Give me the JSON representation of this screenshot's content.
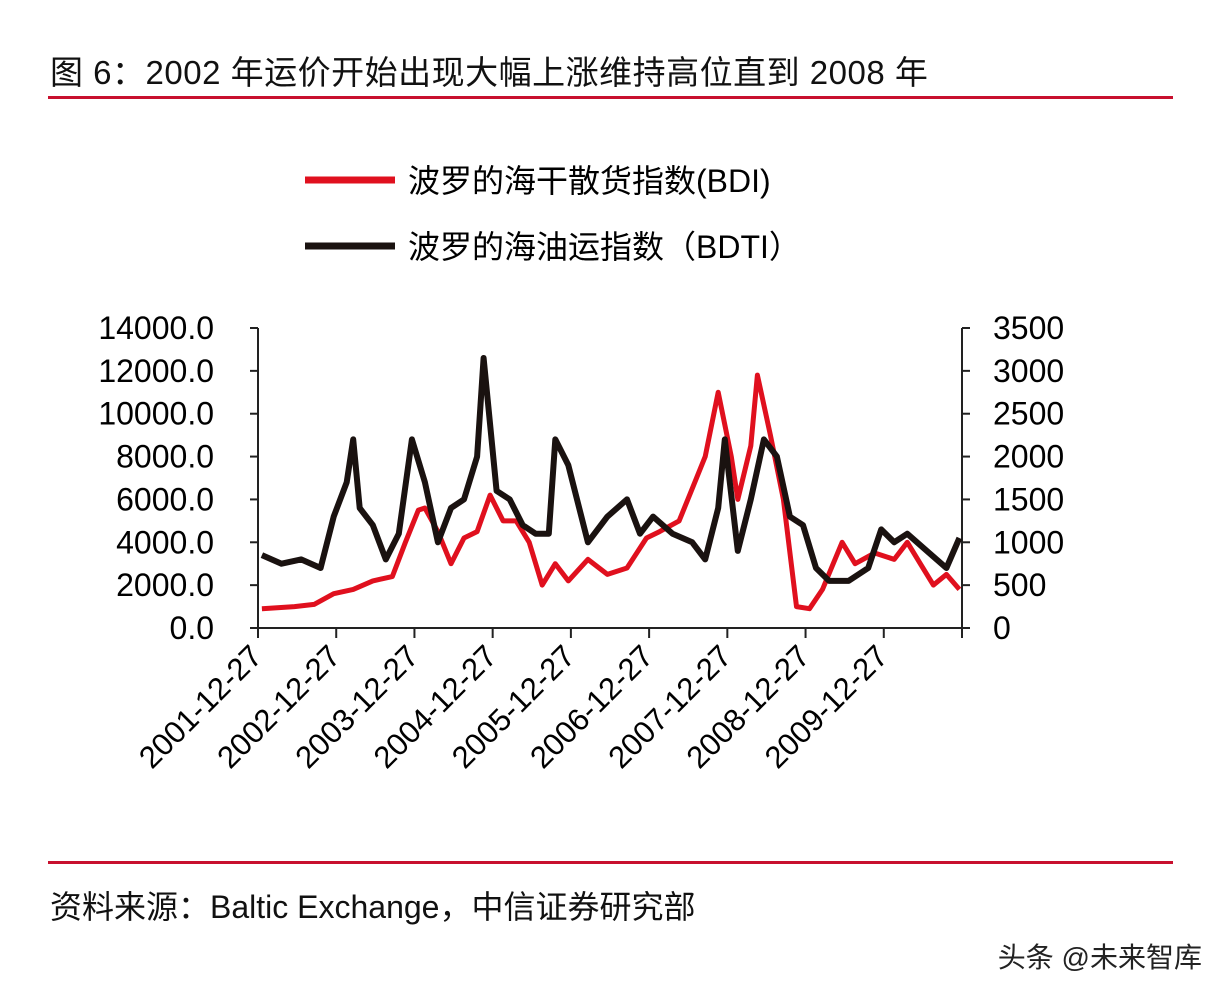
{
  "title": "图 6：2002 年运价开始出现大幅上涨维持高位直到 2008 年",
  "source": "资料来源：Baltic Exchange，中信证券研究部",
  "watermark": "头条 @未来智库",
  "colors": {
    "bdi": "#e0101e",
    "bdti": "#1a1210",
    "rule": "#c8102e"
  },
  "chart_data": {
    "type": "line",
    "legend_placement": "top",
    "grid": false,
    "xlabels": [
      "2001-12-27",
      "2002-12-27",
      "2003-12-27",
      "2004-12-27",
      "2005-12-27",
      "2006-12-27",
      "2007-12-27",
      "2008-12-27",
      "2009-12-27"
    ],
    "xlim": [
      "2001-12-27",
      "2010-12-27"
    ],
    "y_left": {
      "ylim": [
        0,
        14000
      ],
      "ticks": [
        "0.0",
        "2000.0",
        "4000.0",
        "6000.0",
        "8000.0",
        "10000.0",
        "12000.0",
        "14000.0"
      ]
    },
    "y_right": {
      "ylim": [
        0,
        3500
      ],
      "ticks": [
        "0",
        "500",
        "1000",
        "1500",
        "2000",
        "2500",
        "3000",
        "3500"
      ]
    },
    "series": [
      {
        "name": "波罗的海干散货指数(BDI)",
        "axis": "left",
        "color": "#e0101e",
        "x": [
          "2002-01",
          "2002-06",
          "2002-09",
          "2002-12",
          "2003-03",
          "2003-06",
          "2003-09",
          "2003-11",
          "2004-01",
          "2004-02",
          "2004-04",
          "2004-06",
          "2004-08",
          "2004-10",
          "2004-12",
          "2005-02",
          "2005-04",
          "2005-06",
          "2005-08",
          "2005-10",
          "2005-12",
          "2006-03",
          "2006-06",
          "2006-09",
          "2006-12",
          "2007-02",
          "2007-05",
          "2007-07",
          "2007-09",
          "2007-11",
          "2008-01",
          "2008-02",
          "2008-04",
          "2008-05",
          "2008-07",
          "2008-09",
          "2008-11",
          "2009-01",
          "2009-03",
          "2009-06",
          "2009-08",
          "2009-11",
          "2010-02",
          "2010-04",
          "2010-06",
          "2010-08",
          "2010-10",
          "2010-12"
        ],
        "values": [
          900,
          1000,
          1100,
          1600,
          1800,
          2200,
          2400,
          4000,
          5500,
          5600,
          4500,
          3000,
          4200,
          4500,
          6200,
          5000,
          5000,
          4000,
          2000,
          3000,
          2200,
          3200,
          2500,
          2800,
          4200,
          4500,
          5000,
          6500,
          8000,
          11000,
          8000,
          6000,
          8500,
          11800,
          9000,
          6000,
          1000,
          900,
          1800,
          4000,
          3000,
          3500,
          3200,
          4000,
          3000,
          2000,
          2500,
          1800
        ]
      },
      {
        "name": "波罗的海油运指数（BDTI）",
        "axis": "right",
        "color": "#1a1210",
        "x": [
          "2002-01",
          "2002-04",
          "2002-07",
          "2002-10",
          "2002-12",
          "2003-02",
          "2003-03",
          "2003-04",
          "2003-06",
          "2003-08",
          "2003-10",
          "2003-12",
          "2004-02",
          "2004-04",
          "2004-06",
          "2004-08",
          "2004-10",
          "2004-11",
          "2005-01",
          "2005-03",
          "2005-05",
          "2005-07",
          "2005-09",
          "2005-10",
          "2005-12",
          "2006-03",
          "2006-06",
          "2006-09",
          "2006-11",
          "2007-01",
          "2007-04",
          "2007-07",
          "2007-09",
          "2007-11",
          "2007-12",
          "2008-02",
          "2008-04",
          "2008-06",
          "2008-08",
          "2008-10",
          "2008-12",
          "2009-02",
          "2009-04",
          "2009-07",
          "2009-10",
          "2009-12",
          "2010-02",
          "2010-04",
          "2010-07",
          "2010-10",
          "2010-12"
        ],
        "values": [
          850,
          750,
          800,
          700,
          1300,
          1700,
          2200,
          1400,
          1200,
          800,
          1100,
          2200,
          1700,
          1000,
          1400,
          1500,
          2000,
          3150,
          1600,
          1500,
          1200,
          1100,
          1100,
          2200,
          1900,
          1000,
          1300,
          1500,
          1100,
          1300,
          1100,
          1000,
          800,
          1400,
          2200,
          900,
          1500,
          2200,
          2000,
          1300,
          1200,
          700,
          550,
          550,
          700,
          1150,
          1000,
          1100,
          900,
          700,
          1050
        ]
      }
    ]
  }
}
